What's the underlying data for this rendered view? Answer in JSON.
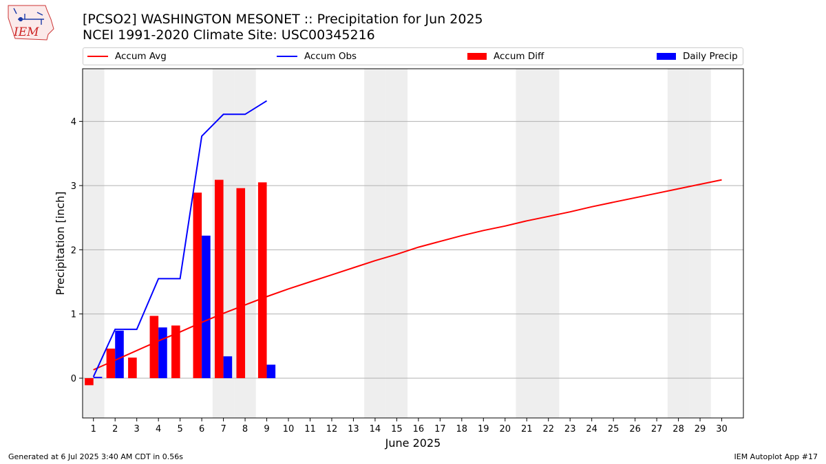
{
  "header": {
    "logo_text": "IEM",
    "title_line1": "[PCSO2] WASHINGTON MESONET :: Precipitation for Jun 2025",
    "title_line2": "NCEI 1991-2020 Climate Site: USC00345216"
  },
  "legend": {
    "accum_avg": "Accum Avg",
    "accum_obs": "Accum Obs",
    "accum_diff": "Accum Diff",
    "daily_precip": "Daily Precip"
  },
  "footer": {
    "generated": "Generated at 6 Jul 2025 3:40 AM CDT in 0.56s",
    "app": "IEM Autoplot App #17"
  },
  "colors": {
    "accum_avg": "#ff0000",
    "accum_obs": "#0000ff",
    "accum_diff": "#ff0000",
    "daily_precip": "#0000ff",
    "weekend_shade": "#eeeeee",
    "grid": "#b0b0b0"
  },
  "chart_data": {
    "type": "bar",
    "title": "[PCSO2] WASHINGTON MESONET :: Precipitation for Jun 2025",
    "subtitle": "NCEI 1991-2020 Climate Site: USC00345216",
    "xlabel": "June 2025",
    "ylabel": "Precipitation [inch]",
    "x": [
      1,
      2,
      3,
      4,
      5,
      6,
      7,
      8,
      9,
      10,
      11,
      12,
      13,
      14,
      15,
      16,
      17,
      18,
      19,
      20,
      21,
      22,
      23,
      24,
      25,
      26,
      27,
      28,
      29,
      30
    ],
    "xlim": [
      0.5,
      31.0
    ],
    "ylim": [
      -0.62,
      4.82
    ],
    "yticks": [
      0,
      1,
      2,
      3,
      4
    ],
    "grid": true,
    "legend_position": "top",
    "weekend_days": [
      1,
      7,
      8,
      14,
      15,
      21,
      22,
      28,
      29
    ],
    "series": [
      {
        "name": "Accum Avg",
        "type": "line",
        "x": [
          1,
          2,
          3,
          4,
          5,
          6,
          7,
          8,
          9,
          10,
          11,
          12,
          13,
          14,
          15,
          16,
          17,
          18,
          19,
          20,
          21,
          22,
          23,
          24,
          25,
          26,
          27,
          28,
          29,
          30
        ],
        "values": [
          0.13,
          0.28,
          0.43,
          0.58,
          0.72,
          0.87,
          1.01,
          1.14,
          1.27,
          1.39,
          1.5,
          1.61,
          1.72,
          1.83,
          1.93,
          2.04,
          2.13,
          2.22,
          2.3,
          2.37,
          2.45,
          2.52,
          2.59,
          2.67,
          2.74,
          2.81,
          2.88,
          2.95,
          3.02,
          3.09
        ]
      },
      {
        "name": "Accum Obs",
        "type": "line",
        "x": [
          1,
          2,
          3,
          4,
          5,
          6,
          7,
          8,
          9
        ],
        "values": [
          0.02,
          0.76,
          0.76,
          1.55,
          1.55,
          3.77,
          4.11,
          4.11,
          4.32
        ]
      },
      {
        "name": "Accum Diff",
        "type": "bar",
        "x": [
          1,
          2,
          3,
          4,
          5,
          6,
          7,
          8,
          9
        ],
        "values": [
          -0.11,
          0.46,
          0.32,
          0.97,
          0.82,
          2.89,
          3.09,
          2.96,
          3.05
        ]
      },
      {
        "name": "Daily Precip",
        "type": "bar",
        "x": [
          1,
          2,
          3,
          4,
          5,
          6,
          7,
          8,
          9
        ],
        "values": [
          0.02,
          0.74,
          0.0,
          0.79,
          0.0,
          2.22,
          0.34,
          0.0,
          0.21
        ]
      }
    ]
  }
}
